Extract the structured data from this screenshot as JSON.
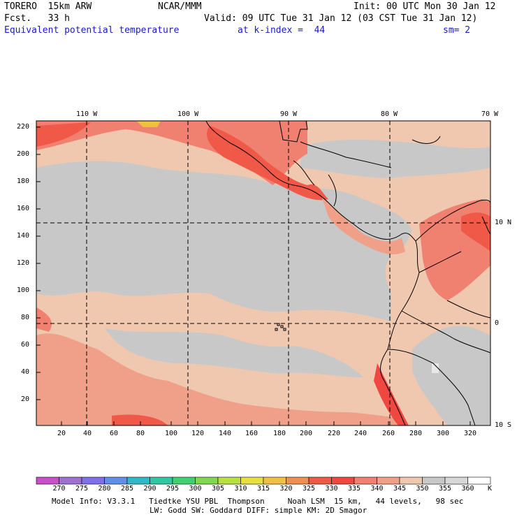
{
  "header": {
    "model": "TORERO  15km ARW",
    "org": "NCAR/MMM",
    "init": "Init: 00 UTC Mon 30 Jan 12",
    "fcst": "Fcst.   33 h",
    "valid": "Valid: 09 UTC Tue 31 Jan 12 (03 CST Tue 31 Jan 12)",
    "field": "Equivalent potential temperature",
    "level": "at k-index =  44",
    "smooth": "sm= 2"
  },
  "map": {
    "top_lon_labels": [
      "110 W",
      "100 W",
      "90 W",
      "80 W",
      "70 W"
    ],
    "right_lat_labels": [
      "10 N",
      "0",
      "10 S"
    ],
    "x_ticks": [
      "20",
      "40",
      "60",
      "80",
      "100",
      "120",
      "140",
      "160",
      "180",
      "200",
      "220",
      "240",
      "260",
      "280",
      "300",
      "320"
    ],
    "y_ticks": [
      "220",
      "200",
      "180",
      "160",
      "140",
      "120",
      "100",
      "80",
      "60",
      "40",
      "20"
    ]
  },
  "colorbar": {
    "unit": "K",
    "labels": [
      "270",
      "275",
      "280",
      "285",
      "290",
      "295",
      "300",
      "305",
      "310",
      "315",
      "320",
      "325",
      "330",
      "335",
      "340",
      "345",
      "350",
      "355",
      "360"
    ],
    "colors": [
      "#c850c8",
      "#a070d0",
      "#8070e8",
      "#6090e8",
      "#30b8c8",
      "#30c8a0",
      "#40d070",
      "#80d850",
      "#b8e040",
      "#e8e040",
      "#f0c040",
      "#f09050",
      "#f05848",
      "#f04840",
      "#f08070",
      "#f0a088",
      "#f0c8b0",
      "#c8c8c8",
      "#d8d8d8",
      "#ffffff"
    ]
  },
  "footer": {
    "line1": "Model Info: V3.3.1   Tiedtke YSU PBL  Thompson     Noah LSM  15 km,   44 levels,   98 sec",
    "line2": "LW: Godd SW: Goddard DIFF: simple KM: 2D Smagor"
  }
}
